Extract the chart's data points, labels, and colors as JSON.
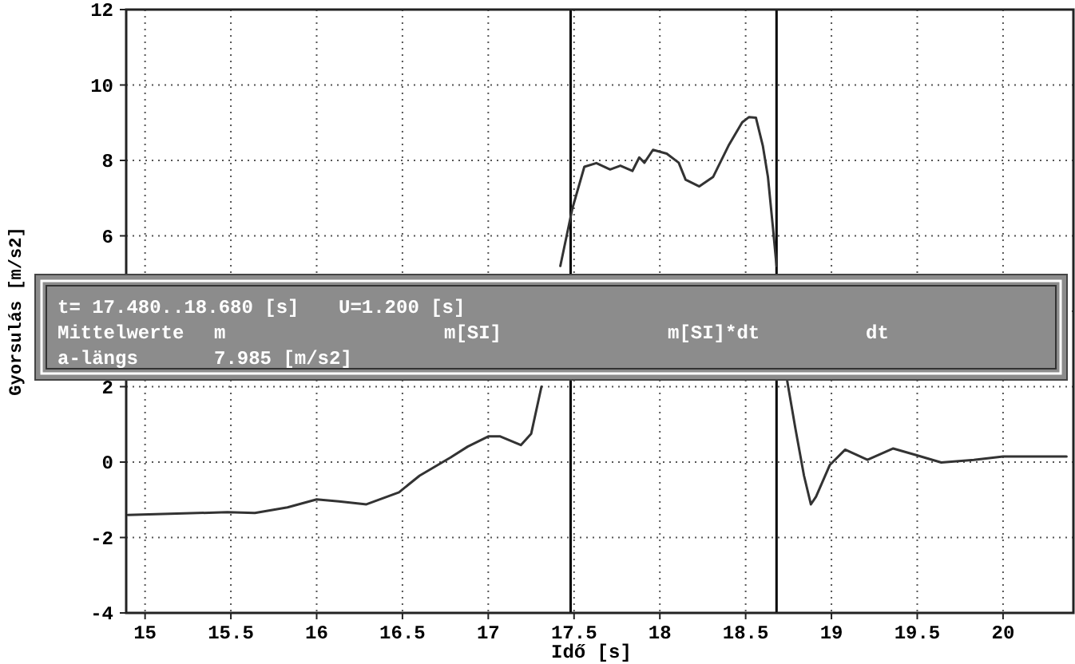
{
  "chart_data": {
    "type": "line",
    "xlabel": "Idő [s]",
    "ylabel": "Gyorsulás [m/s2]",
    "xlim": [
      14.89,
      20.41
    ],
    "ylim": [
      -4,
      12
    ],
    "xticks": [
      15,
      15.5,
      16,
      16.5,
      17,
      17.5,
      18,
      18.5,
      19,
      19.5,
      20
    ],
    "yticks": [
      -4,
      -2,
      0,
      2,
      {
        "value": 4,
        "label": null
      },
      6,
      8,
      10,
      12
    ],
    "grid": true,
    "line_style": "solid",
    "series": [
      {
        "color": "#333333",
        "x": [
          14.9,
          15.48,
          15.64,
          15.83,
          16.0,
          16.13,
          16.29,
          16.48,
          16.6,
          16.78,
          16.88,
          17.0,
          17.07,
          17.19,
          17.25,
          17.31,
          17.36,
          17.42,
          17.49,
          17.56,
          17.63,
          17.71,
          17.77,
          17.84,
          17.88,
          17.91,
          17.96,
          18.04,
          18.11,
          18.15,
          18.23,
          18.31,
          18.4,
          18.48,
          18.52,
          18.56,
          18.6,
          18.63,
          18.66,
          18.68,
          18.71,
          18.74,
          18.79,
          18.84,
          18.88,
          18.91,
          18.99,
          19.08,
          19.21,
          19.36,
          19.49,
          19.64,
          19.83,
          20.0,
          20.37
        ],
        "values": [
          -1.4,
          -1.33,
          -1.35,
          -1.2,
          -0.99,
          -1.04,
          -1.12,
          -0.8,
          -0.36,
          0.12,
          0.41,
          0.68,
          0.68,
          0.45,
          0.75,
          2.0,
          null,
          5.2,
          6.72,
          7.83,
          7.93,
          7.76,
          7.86,
          7.72,
          8.08,
          7.94,
          8.28,
          8.18,
          7.94,
          7.49,
          7.31,
          7.56,
          8.39,
          9.01,
          9.15,
          9.13,
          8.39,
          7.56,
          6.17,
          5.2,
          null,
          2.21,
          0.89,
          -0.36,
          -1.12,
          -0.92,
          -0.08,
          0.33,
          0.06,
          0.36,
          0.19,
          -0.01,
          0.06,
          0.15,
          0.15
        ]
      }
    ],
    "ref_lines": [
      {
        "axis": "x",
        "value": 17.48,
        "color": "#000000"
      },
      {
        "axis": "x",
        "value": 18.68,
        "color": "#000000"
      }
    ],
    "annotations": [
      "t= 17.480..18.680 [s]",
      "U=1.200 [s]",
      "Mittelwerte",
      "m",
      "m[SI]",
      "m[SI]*dt",
      "dt",
      "a-längs",
      "7.985 [m/s2]"
    ]
  }
}
